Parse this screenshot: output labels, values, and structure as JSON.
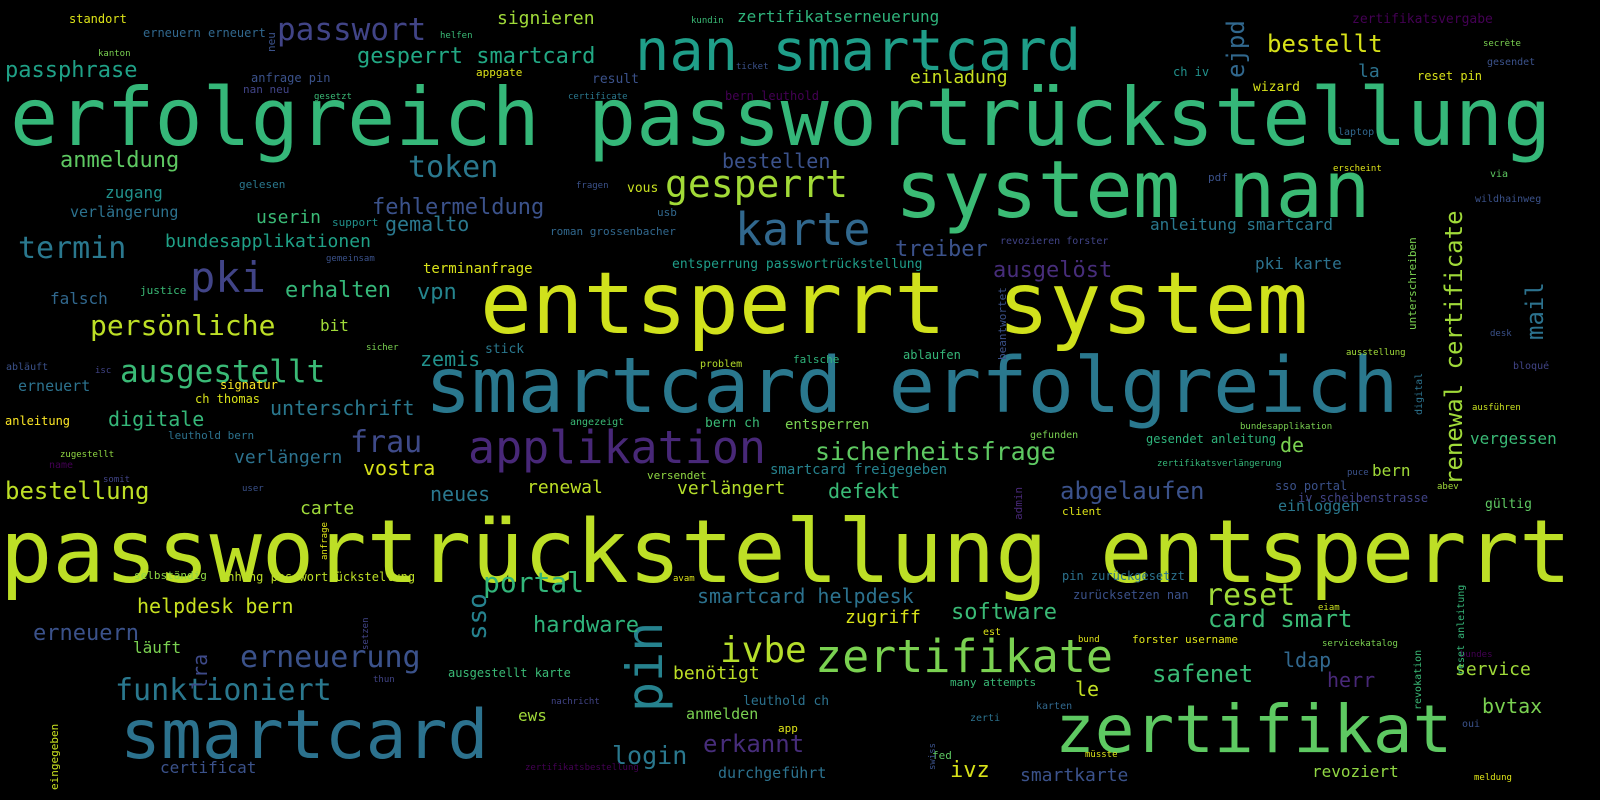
{
  "words": [
    {
      "text": "erfolgreich passwortrückstellung",
      "color": "#35b779"
    },
    {
      "text": "passwortrückstellung entsperrt",
      "color": "#bddf26"
    },
    {
      "text": "entsperrt system",
      "color": "#d0e11c"
    },
    {
      "text": "smartcard erfolgreich",
      "color": "#2a788e"
    },
    {
      "text": "system nan",
      "color": "#3bbb75"
    },
    {
      "text": "nan smartcard",
      "color": "#1f9e89"
    },
    {
      "text": "zertifikat",
      "color": "#5ec962"
    },
    {
      "text": "smartcard",
      "color": "#2c728e"
    },
    {
      "text": "zertifikate",
      "color": "#7ad151"
    },
    {
      "text": "applikation",
      "color": "#482878"
    },
    {
      "text": "karte",
      "color": "#31688e"
    },
    {
      "text": "gesperrt",
      "color": "#a2da37"
    },
    {
      "text": "pki",
      "color": "#414487"
    },
    {
      "text": "passwort",
      "color": "#414487"
    },
    {
      "text": "ausgestellt",
      "color": "#3aba76"
    },
    {
      "text": "ivbe",
      "color": "#b5de2b"
    },
    {
      "text": "pin",
      "color": "#26828e"
    },
    {
      "text": "token",
      "color": "#2a788e"
    },
    {
      "text": "termin",
      "color": "#2a788e"
    },
    {
      "text": "persönliche",
      "color": "#bddf26"
    },
    {
      "text": "funktioniert",
      "color": "#2a788e"
    },
    {
      "text": "erneuerung",
      "color": "#3b528b"
    },
    {
      "text": "frau",
      "color": "#3e4a89"
    },
    {
      "text": "portal",
      "color": "#32b67a"
    },
    {
      "text": "reset",
      "color": "#a0da39"
    },
    {
      "text": "renewal certificate",
      "color": "#a0da39"
    },
    {
      "text": "mail",
      "color": "#2c728e"
    },
    {
      "text": "ejpd",
      "color": "#31688e"
    },
    {
      "text": "sso",
      "color": "#26828e"
    },
    {
      "text": "lra",
      "color": "#3e4a89"
    },
    {
      "text": "sicherheitsfrage",
      "color": "#5ec962"
    },
    {
      "text": "login",
      "color": "#2a788e"
    },
    {
      "text": "erkannt",
      "color": "#472d7b"
    },
    {
      "text": "safenet",
      "color": "#3aba76"
    },
    {
      "text": "card smart",
      "color": "#3aba76"
    },
    {
      "text": "abgelaufen",
      "color": "#3b528b"
    },
    {
      "text": "ausgelöst",
      "color": "#472d7b"
    },
    {
      "text": "bestellt",
      "color": "#d8e219"
    },
    {
      "text": "gesperrt smartcard",
      "color": "#22a884"
    },
    {
      "text": "passphrase",
      "color": "#1fa187"
    },
    {
      "text": "anmeldung",
      "color": "#5ec962"
    },
    {
      "text": "bestellung",
      "color": "#bddf26"
    },
    {
      "text": "hardware",
      "color": "#2fb47c"
    },
    {
      "text": "software",
      "color": "#3aba76"
    },
    {
      "text": "smartcard helpdesk",
      "color": "#2c728e"
    },
    {
      "text": "helpdesk bern",
      "color": "#c8e020"
    },
    {
      "text": "erneuern",
      "color": "#3b528b"
    },
    {
      "text": "fehlermeldung",
      "color": "#3b528b"
    },
    {
      "text": "bundesapplikationen",
      "color": "#1fa187"
    },
    {
      "text": "erhalten",
      "color": "#35b779"
    },
    {
      "text": "vpn",
      "color": "#25858e"
    },
    {
      "text": "bestellen",
      "color": "#3b528b"
    },
    {
      "text": "treiber",
      "color": "#3b528b"
    },
    {
      "text": "digitale",
      "color": "#35b779"
    },
    {
      "text": "unterschrift",
      "color": "#2a788e"
    },
    {
      "text": "zemis",
      "color": "#21918c"
    },
    {
      "text": "vostra",
      "color": "#d8e219"
    },
    {
      "text": "verlängern",
      "color": "#2c728e"
    },
    {
      "text": "neues",
      "color": "#2a788e"
    },
    {
      "text": "renewal",
      "color": "#bddf26"
    },
    {
      "text": "verlängert",
      "color": "#b5de2b"
    },
    {
      "text": "defekt",
      "color": "#3aba76"
    },
    {
      "text": "carte",
      "color": "#9fda3a"
    },
    {
      "text": "benötigt",
      "color": "#bddf26"
    },
    {
      "text": "zugriff",
      "color": "#d8e219"
    },
    {
      "text": "ldap",
      "color": "#31688e"
    },
    {
      "text": "herr",
      "color": "#482878"
    },
    {
      "text": "service",
      "color": "#a0da39"
    },
    {
      "text": "bvtax",
      "color": "#7ad151"
    },
    {
      "text": "le",
      "color": "#c2df23"
    },
    {
      "text": "ivz",
      "color": "#d8e219"
    },
    {
      "text": "smartkarte",
      "color": "#3b528b"
    },
    {
      "text": "revoziert",
      "color": "#90d743"
    },
    {
      "text": "durchgeführt",
      "color": "#2c728e"
    },
    {
      "text": "anmelden",
      "color": "#7ad151"
    },
    {
      "text": "ews",
      "color": "#a0da39"
    },
    {
      "text": "certificat",
      "color": "#3b528b"
    },
    {
      "text": "läuft",
      "color": "#7ad151"
    },
    {
      "text": "falsch",
      "color": "#31688e"
    },
    {
      "text": "bit",
      "color": "#a0da39"
    },
    {
      "text": "zugang",
      "color": "#21918c"
    },
    {
      "text": "verlängerung",
      "color": "#2c728e"
    },
    {
      "text": "userin",
      "color": "#3aba76"
    },
    {
      "text": "gemalto",
      "color": "#2a788e"
    },
    {
      "text": "terminanfrage",
      "color": "#d8e219"
    },
    {
      "text": "entsperrung passwortrückstellung",
      "color": "#1f9e89"
    },
    {
      "text": "pki karte",
      "color": "#2c728e"
    },
    {
      "text": "anleitung smartcard",
      "color": "#2a788e"
    },
    {
      "text": "de",
      "color": "#7ad151"
    },
    {
      "text": "bern",
      "color": "#a0da39"
    },
    {
      "text": "vergessen",
      "color": "#3aba76"
    },
    {
      "text": "gültig",
      "color": "#5ec962"
    },
    {
      "text": "einloggen",
      "color": "#2a788e"
    },
    {
      "text": "sso portal",
      "color": "#3b528b"
    },
    {
      "text": "iv scheibenstrasse",
      "color": "#414487"
    },
    {
      "text": "smartcard freigegeben",
      "color": "#26828e"
    },
    {
      "text": "signieren",
      "color": "#a0da39"
    },
    {
      "text": "zertifikatserneuerung",
      "color": "#2fb47c"
    },
    {
      "text": "einladung",
      "color": "#c8e020"
    },
    {
      "text": "la",
      "color": "#2c728e"
    },
    {
      "text": "wizard",
      "color": "#d8e219"
    },
    {
      "text": "reset pin",
      "color": "#d8e219"
    },
    {
      "text": "standort",
      "color": "#dde318"
    },
    {
      "text": "erneuern erneuert",
      "color": "#31688e"
    },
    {
      "text": "zertifikatsvergabe",
      "color": "#440154"
    },
    {
      "text": "vous",
      "color": "#c8e020"
    },
    {
      "text": "pin zurückgesetzt",
      "color": "#2c728e"
    },
    {
      "text": "zurücksetzen nan",
      "color": "#3b528b"
    },
    {
      "text": "entsperren",
      "color": "#7ad151"
    },
    {
      "text": "bern ch",
      "color": "#3aba76"
    },
    {
      "text": "signatur",
      "color": "#fde725"
    },
    {
      "text": "ch thomas",
      "color": "#d8e219"
    },
    {
      "text": "anleitung",
      "color": "#fde725"
    },
    {
      "text": "erneuert",
      "color": "#2c728e"
    },
    {
      "text": "anhang passwortrückstellung",
      "color": "#bddf26"
    },
    {
      "text": "selbständig",
      "color": "#8fd744"
    },
    {
      "text": "ausgestellt karte",
      "color": "#3aba76"
    },
    {
      "text": "leuthold ch",
      "color": "#2c728e"
    },
    {
      "text": "many attempts",
      "color": "#3aba76"
    },
    {
      "text": "forster username",
      "color": "#dde318"
    },
    {
      "text": "gesendet anleitung",
      "color": "#2fb47c"
    },
    {
      "text": "stick",
      "color": "#2a788e"
    },
    {
      "text": "roman grossenbacher",
      "color": "#31688e"
    },
    {
      "text": "ablaufen",
      "color": "#35b779"
    },
    {
      "text": "falsche",
      "color": "#2fb47c"
    },
    {
      "text": "result",
      "color": "#3b528b"
    },
    {
      "text": "appgate",
      "color": "#dde318"
    },
    {
      "text": "anfrage pin",
      "color": "#3b528b"
    },
    {
      "text": "nan neu",
      "color": "#414487"
    },
    {
      "text": "helfen",
      "color": "#3aba76"
    },
    {
      "text": "ch iv",
      "color": "#21918c"
    },
    {
      "text": "bern leuthold",
      "color": "#440154"
    },
    {
      "text": "justice",
      "color": "#3aba76"
    },
    {
      "text": "support",
      "color": "#21918c"
    },
    {
      "text": "gelesen",
      "color": "#2a788e"
    },
    {
      "text": "fragen",
      "color": "#3b528b"
    },
    {
      "text": "usb",
      "color": "#31688e"
    },
    {
      "text": "laptop",
      "color": "#31688e"
    },
    {
      "text": "erscheint",
      "color": "#dde318"
    },
    {
      "text": "pdf",
      "color": "#3b528b"
    },
    {
      "text": "via",
      "color": "#5ec962"
    },
    {
      "text": "wildhainweg",
      "color": "#3b528b"
    },
    {
      "text": "secrète",
      "color": "#7ad151"
    },
    {
      "text": "gesendet",
      "color": "#3b528b"
    },
    {
      "text": "desk",
      "color": "#3b528b"
    },
    {
      "text": "bloqué",
      "color": "#414487"
    },
    {
      "text": "ausführen",
      "color": "#c8e020"
    },
    {
      "text": "ausstellung",
      "color": "#a0da39"
    },
    {
      "text": "problem",
      "color": "#b5de2b"
    },
    {
      "text": "sicher",
      "color": "#7ad151"
    },
    {
      "text": "isc",
      "color": "#414487"
    },
    {
      "text": "abläuft",
      "color": "#3b528b"
    },
    {
      "text": "name",
      "color": "#440154"
    },
    {
      "text": "zugestellt",
      "color": "#90d743"
    },
    {
      "text": "somit",
      "color": "#414487"
    },
    {
      "text": "user",
      "color": "#3b528b"
    },
    {
      "text": "leuthold bern",
      "color": "#2c728e"
    },
    {
      "text": "angezeigt",
      "color": "#3aba76"
    },
    {
      "text": "versendet",
      "color": "#90d743"
    },
    {
      "text": "gefunden",
      "color": "#7ad151"
    },
    {
      "text": "bundesapplikation",
      "color": "#7ad151"
    },
    {
      "text": "zertifikatsverlängerung",
      "color": "#35b779"
    },
    {
      "text": "puce",
      "color": "#3b528b"
    },
    {
      "text": "abev",
      "color": "#a0da39"
    },
    {
      "text": "client",
      "color": "#dde318"
    },
    {
      "text": "avam",
      "color": "#dde318"
    },
    {
      "text": "eiam",
      "color": "#c8e020"
    },
    {
      "text": "est",
      "color": "#dde318"
    },
    {
      "text": "bund",
      "color": "#dde318"
    },
    {
      "text": "servicekatalog",
      "color": "#7ad151"
    },
    {
      "text": "bundes",
      "color": "#440154"
    },
    {
      "text": "thun",
      "color": "#414487"
    },
    {
      "text": "nachricht",
      "color": "#414487"
    },
    {
      "text": "app",
      "color": "#dde318"
    },
    {
      "text": "zerti",
      "color": "#2c728e"
    },
    {
      "text": "karten",
      "color": "#31688e"
    },
    {
      "text": "oui",
      "color": "#3b528b"
    },
    {
      "text": "fed",
      "color": "#5ec962"
    },
    {
      "text": "müsste",
      "color": "#dde318"
    },
    {
      "text": "zertifikatsbestellung",
      "color": "#440154"
    },
    {
      "text": "meldung",
      "color": "#dde318"
    },
    {
      "text": "kundin",
      "color": "#3aba76"
    },
    {
      "text": "gesetzt",
      "color": "#3aba76"
    },
    {
      "text": "certificate",
      "color": "#2a788e"
    },
    {
      "text": "ticket",
      "color": "#3b528b"
    },
    {
      "text": "kanton",
      "color": "#7ad151"
    },
    {
      "text": "revozieren forster",
      "color": "#414487"
    },
    {
      "text": "gemeinsam",
      "color": "#3b528b"
    },
    {
      "text": "neu",
      "color": "#3b528b"
    },
    {
      "text": "unterschreiben",
      "color": "#7ad151"
    },
    {
      "text": "beantwortet",
      "color": "#3b528b"
    },
    {
      "text": "digital",
      "color": "#2c728e"
    },
    {
      "text": "admin",
      "color": "#482878"
    },
    {
      "text": "anfrage",
      "color": "#dde318"
    },
    {
      "text": "setzen",
      "color": "#414487"
    },
    {
      "text": "eingegeben",
      "color": "#c8e020"
    },
    {
      "text": "swiss",
      "color": "#3b528b"
    },
    {
      "text": "revokation",
      "color": "#3aba76"
    },
    {
      "text": "reset anleitung",
      "color": "#35b779"
    }
  ]
}
